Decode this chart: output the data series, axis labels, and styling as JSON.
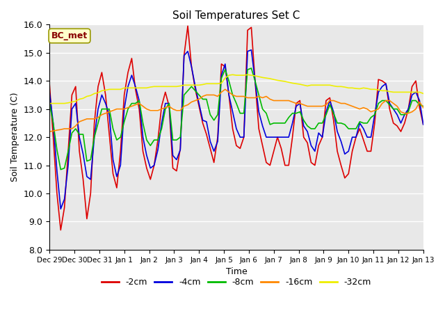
{
  "title": "Soil Temperatures Set C",
  "xlabel": "Time",
  "ylabel": "Soil Temperature (C)",
  "ylim": [
    8.0,
    16.0
  ],
  "yticks": [
    8.0,
    9.0,
    10.0,
    11.0,
    12.0,
    13.0,
    14.0,
    15.0,
    16.0
  ],
  "xtick_labels": [
    "Dec 29",
    "Dec 30",
    "Dec 31",
    "Jan 1",
    "Jan 2",
    "Jan 3",
    "Jan 4",
    "Jan 5",
    "Jan 6",
    "Jan 7",
    "Jan 8",
    "Jan 9",
    "Jan 10",
    "Jan 11",
    "Jan 12",
    "Jan 13"
  ],
  "annotation": "BC_met",
  "series": {
    "-2cm": {
      "color": "#dd0000",
      "data": [
        13.9,
        12.0,
        10.0,
        8.7,
        9.5,
        11.5,
        13.5,
        13.8,
        11.5,
        10.5,
        9.1,
        10.0,
        12.5,
        13.8,
        14.3,
        13.5,
        12.1,
        10.7,
        10.2,
        11.5,
        13.5,
        14.3,
        14.8,
        13.7,
        13.0,
        11.5,
        10.9,
        10.5,
        11.0,
        11.9,
        13.1,
        13.6,
        13.1,
        10.9,
        10.8,
        11.6,
        14.9,
        15.95,
        14.5,
        13.7,
        13.1,
        12.5,
        12.1,
        11.6,
        11.1,
        12.0,
        14.6,
        14.5,
        13.5,
        12.3,
        11.7,
        11.6,
        12.0,
        15.8,
        15.9,
        14.0,
        12.3,
        11.7,
        11.1,
        11.0,
        11.5,
        12.0,
        11.6,
        11.0,
        11.0,
        12.0,
        13.2,
        13.3,
        12.0,
        11.8,
        11.1,
        11.0,
        11.7,
        12.0,
        13.3,
        13.4,
        12.6,
        11.5,
        11.0,
        10.55,
        10.7,
        11.5,
        12.0,
        12.3,
        11.9,
        11.5,
        11.5,
        12.5,
        14.05,
        14.0,
        13.9,
        13.0,
        12.5,
        12.4,
        12.2,
        12.5,
        13.0,
        13.8,
        14.0,
        13.05,
        12.45
      ]
    },
    "-4cm": {
      "color": "#0000dd",
      "data": [
        13.6,
        12.5,
        10.8,
        9.45,
        9.8,
        11.0,
        13.0,
        13.2,
        12.0,
        11.4,
        10.6,
        10.5,
        12.0,
        13.0,
        13.5,
        13.2,
        12.8,
        11.2,
        10.6,
        11.0,
        13.0,
        13.8,
        14.2,
        13.8,
        13.3,
        12.0,
        11.35,
        10.9,
        11.0,
        11.55,
        12.5,
        13.2,
        13.2,
        11.35,
        11.2,
        11.55,
        14.9,
        15.05,
        14.5,
        13.8,
        13.2,
        12.6,
        12.55,
        11.85,
        11.5,
        11.85,
        14.2,
        14.6,
        13.5,
        12.9,
        12.3,
        12.0,
        12.0,
        15.05,
        15.1,
        14.0,
        12.9,
        12.4,
        12.0,
        12.0,
        12.0,
        12.0,
        12.0,
        12.0,
        12.0,
        12.5,
        13.1,
        13.2,
        12.4,
        12.2,
        11.7,
        11.5,
        12.15,
        12.0,
        12.9,
        13.3,
        12.9,
        12.2,
        11.85,
        11.4,
        11.5,
        12.0,
        12.0,
        12.5,
        12.3,
        12.0,
        12.0,
        12.8,
        13.6,
        13.8,
        13.9,
        13.2,
        13.0,
        12.8,
        12.5,
        12.8,
        13.0,
        13.5,
        13.6,
        13.3,
        12.45
      ]
    },
    "-8cm": {
      "color": "#00bb00",
      "data": [
        13.2,
        12.5,
        11.55,
        10.85,
        10.9,
        11.5,
        12.15,
        12.3,
        12.1,
        12.1,
        11.15,
        11.2,
        12.0,
        12.5,
        13.0,
        13.0,
        13.0,
        12.3,
        11.9,
        12.0,
        12.55,
        13.0,
        13.2,
        13.2,
        13.3,
        12.5,
        11.9,
        11.7,
        11.9,
        11.9,
        12.3,
        13.0,
        13.2,
        11.9,
        11.9,
        12.0,
        13.5,
        13.65,
        13.8,
        13.65,
        13.5,
        13.35,
        13.35,
        12.8,
        12.6,
        12.8,
        14.1,
        14.4,
        14.0,
        13.5,
        13.2,
        12.85,
        12.85,
        14.4,
        14.45,
        14.0,
        13.5,
        13.0,
        12.85,
        12.45,
        12.5,
        12.5,
        12.5,
        12.5,
        12.7,
        12.85,
        12.85,
        12.9,
        12.6,
        12.4,
        12.3,
        12.3,
        12.5,
        12.5,
        12.8,
        13.15,
        12.85,
        12.5,
        12.5,
        12.45,
        12.3,
        12.3,
        12.3,
        12.55,
        12.5,
        12.5,
        12.7,
        12.8,
        13.2,
        13.3,
        13.3,
        13.15,
        13.0,
        13.0,
        12.8,
        12.8,
        12.9,
        13.3,
        13.3,
        13.15,
        13.1
      ]
    },
    "-16cm": {
      "color": "#ff8800",
      "data": [
        12.2,
        12.22,
        12.25,
        12.27,
        12.3,
        12.3,
        12.3,
        12.4,
        12.55,
        12.6,
        12.65,
        12.65,
        12.65,
        12.7,
        12.8,
        12.85,
        12.9,
        12.95,
        13.0,
        13.0,
        13.0,
        13.05,
        13.1,
        13.15,
        13.2,
        13.1,
        13.0,
        12.95,
        12.95,
        12.95,
        13.0,
        13.05,
        13.1,
        13.0,
        12.95,
        12.95,
        13.1,
        13.15,
        13.25,
        13.3,
        13.35,
        13.45,
        13.5,
        13.5,
        13.5,
        13.45,
        13.6,
        13.7,
        13.6,
        13.5,
        13.45,
        13.45,
        13.45,
        13.4,
        13.4,
        13.4,
        13.45,
        13.4,
        13.45,
        13.35,
        13.3,
        13.3,
        13.3,
        13.3,
        13.3,
        13.25,
        13.2,
        13.2,
        13.15,
        13.1,
        13.1,
        13.1,
        13.1,
        13.1,
        13.15,
        13.3,
        13.3,
        13.25,
        13.2,
        13.2,
        13.15,
        13.1,
        13.05,
        13.0,
        13.05,
        13.0,
        12.9,
        12.95,
        13.0,
        13.2,
        13.3,
        13.3,
        13.2,
        13.1,
        12.9,
        12.85,
        12.85,
        12.9,
        13.0,
        13.25,
        13.05
      ]
    },
    "-32cm": {
      "color": "#eeee00",
      "data": [
        13.2,
        13.2,
        13.2,
        13.2,
        13.2,
        13.22,
        13.25,
        13.28,
        13.35,
        13.38,
        13.45,
        13.48,
        13.55,
        13.58,
        13.65,
        13.67,
        13.7,
        13.7,
        13.7,
        13.7,
        13.75,
        13.75,
        13.75,
        13.75,
        13.75,
        13.75,
        13.75,
        13.78,
        13.8,
        13.8,
        13.8,
        13.8,
        13.8,
        13.8,
        13.8,
        13.82,
        13.85,
        13.85,
        13.85,
        13.85,
        13.85,
        13.87,
        13.9,
        13.9,
        13.9,
        13.9,
        13.92,
        14.1,
        14.2,
        14.22,
        14.2,
        14.2,
        14.2,
        14.22,
        14.2,
        14.18,
        14.15,
        14.12,
        14.1,
        14.08,
        14.05,
        14.02,
        14.0,
        13.98,
        13.95,
        13.92,
        13.9,
        13.88,
        13.85,
        13.82,
        13.85,
        13.85,
        13.85,
        13.85,
        13.85,
        13.85,
        13.82,
        13.8,
        13.8,
        13.78,
        13.75,
        13.75,
        13.73,
        13.72,
        13.75,
        13.73,
        13.7,
        13.7,
        13.68,
        13.65,
        13.65,
        13.62,
        13.6,
        13.6,
        13.6,
        13.6,
        13.6,
        13.6,
        13.6,
        13.6,
        13.55
      ]
    }
  },
  "n_points": 101,
  "fig_bg": "#ffffff",
  "plot_bg": "#e8e8e8",
  "grid_color": "#ffffff"
}
